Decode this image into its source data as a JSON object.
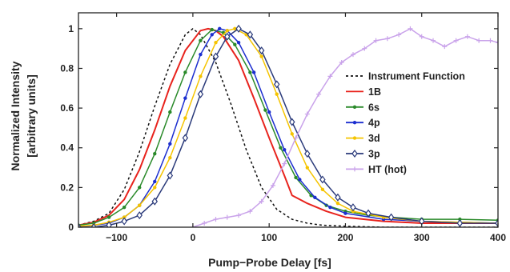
{
  "chart_data": {
    "type": "line",
    "xlabel": "Pump−Probe Delay [fs]",
    "ylabel_line1": "Normalized Intensity",
    "ylabel_line2": "[arbitrary units]",
    "xlim": [
      -150,
      400
    ],
    "ylim": [
      0,
      1.08
    ],
    "x_ticks": [
      {
        "value": -100,
        "label": "−100"
      },
      {
        "value": 0,
        "label": "0"
      },
      {
        "value": 100,
        "label": "100"
      },
      {
        "value": 200,
        "label": "200"
      },
      {
        "value": 300,
        "label": "300"
      },
      {
        "value": 400,
        "label": "400"
      }
    ],
    "y_ticks": [
      {
        "value": 0,
        "label": "0"
      },
      {
        "value": 0.2,
        "label": "0.2"
      },
      {
        "value": 0.4,
        "label": "0.4"
      },
      {
        "value": 0.6,
        "label": "0.6"
      },
      {
        "value": 0.8,
        "label": "0.8"
      },
      {
        "value": 1,
        "label": "1"
      }
    ],
    "grid": false,
    "legend_placement": "right",
    "series": [
      {
        "name": "Instrument Function",
        "color": "#111111",
        "dash": "3,3",
        "marker": "none",
        "x": [
          -150,
          -130,
          -110,
          -90,
          -70,
          -50,
          -30,
          -10,
          0,
          10,
          30,
          50,
          70,
          90,
          110,
          130,
          150,
          170,
          200,
          250,
          300,
          400
        ],
        "y": [
          0.01,
          0.03,
          0.07,
          0.19,
          0.38,
          0.61,
          0.82,
          0.97,
          1.0,
          0.97,
          0.83,
          0.62,
          0.39,
          0.2,
          0.09,
          0.04,
          0.02,
          0.01,
          0.005,
          0.0,
          0.0,
          0.0
        ]
      },
      {
        "name": "1B",
        "color": "#e8231d",
        "dash": "",
        "marker": "none",
        "x": [
          -150,
          -130,
          -110,
          -90,
          -70,
          -50,
          -30,
          -10,
          10,
          20,
          30,
          40,
          60,
          80,
          100,
          120,
          130,
          150,
          175,
          200,
          250,
          300,
          400
        ],
        "y": [
          0.01,
          0.025,
          0.06,
          0.14,
          0.29,
          0.49,
          0.71,
          0.89,
          0.99,
          1.0,
          0.99,
          0.96,
          0.84,
          0.65,
          0.45,
          0.26,
          0.16,
          0.12,
          0.08,
          0.05,
          0.03,
          0.02,
          0.02
        ]
      },
      {
        "name": "6s",
        "color": "#2a8a2a",
        "dash": "",
        "marker": "dot",
        "x": [
          -150,
          -130,
          -110,
          -90,
          -70,
          -50,
          -30,
          -10,
          10,
          25,
          40,
          55,
          75,
          95,
          115,
          135,
          155,
          175,
          200,
          230,
          260,
          300,
          350,
          400
        ],
        "y": [
          0.01,
          0.02,
          0.05,
          0.1,
          0.2,
          0.37,
          0.58,
          0.78,
          0.94,
          0.995,
          0.98,
          0.92,
          0.78,
          0.59,
          0.4,
          0.25,
          0.16,
          0.11,
          0.08,
          0.06,
          0.05,
          0.04,
          0.04,
          0.035
        ]
      },
      {
        "name": "4p",
        "color": "#1c2ecf",
        "dash": "",
        "marker": "dot",
        "x": [
          -150,
          -130,
          -110,
          -90,
          -70,
          -50,
          -30,
          -10,
          10,
          25,
          35,
          45,
          60,
          80,
          100,
          120,
          140,
          160,
          180,
          200,
          250,
          300,
          400
        ],
        "y": [
          0.0,
          0.01,
          0.02,
          0.05,
          0.11,
          0.23,
          0.42,
          0.65,
          0.87,
          0.97,
          1.0,
          0.99,
          0.93,
          0.78,
          0.58,
          0.39,
          0.24,
          0.15,
          0.1,
          0.07,
          0.04,
          0.03,
          0.02
        ]
      },
      {
        "name": "3d",
        "color": "#f5c400",
        "dash": "",
        "marker": "dot",
        "x": [
          -150,
          -130,
          -110,
          -90,
          -70,
          -50,
          -30,
          -10,
          10,
          30,
          45,
          55,
          70,
          90,
          110,
          130,
          150,
          170,
          190,
          210,
          250,
          300,
          400
        ],
        "y": [
          0.005,
          0.01,
          0.025,
          0.05,
          0.11,
          0.2,
          0.35,
          0.55,
          0.76,
          0.93,
          0.99,
          1.0,
          0.97,
          0.86,
          0.67,
          0.47,
          0.3,
          0.19,
          0.12,
          0.08,
          0.05,
          0.03,
          0.02
        ]
      },
      {
        "name": "3p",
        "color": "#2a3a7a",
        "dash": "",
        "marker": "diamond",
        "x": [
          -150,
          -130,
          -110,
          -90,
          -70,
          -50,
          -30,
          -10,
          10,
          30,
          45,
          60,
          75,
          90,
          110,
          130,
          150,
          170,
          190,
          210,
          230,
          260,
          300,
          350,
          400
        ],
        "y": [
          0.0,
          0.0,
          0.01,
          0.03,
          0.06,
          0.13,
          0.26,
          0.45,
          0.67,
          0.86,
          0.96,
          1.0,
          0.97,
          0.89,
          0.72,
          0.53,
          0.37,
          0.24,
          0.15,
          0.1,
          0.07,
          0.05,
          0.03,
          0.02,
          0.02
        ]
      },
      {
        "name": "HT (hot)",
        "color": "#c9a2ea",
        "dash": "",
        "marker": "plus",
        "x": [
          0,
          15,
          30,
          45,
          60,
          75,
          90,
          105,
          120,
          135,
          150,
          165,
          180,
          195,
          210,
          225,
          240,
          255,
          270,
          285,
          300,
          315,
          330,
          345,
          360,
          375,
          390,
          400
        ],
        "y": [
          0.0,
          0.02,
          0.04,
          0.05,
          0.06,
          0.08,
          0.13,
          0.21,
          0.32,
          0.45,
          0.57,
          0.67,
          0.76,
          0.83,
          0.87,
          0.9,
          0.94,
          0.95,
          0.97,
          1.0,
          0.96,
          0.94,
          0.91,
          0.94,
          0.96,
          0.94,
          0.94,
          0.93
        ]
      }
    ]
  }
}
